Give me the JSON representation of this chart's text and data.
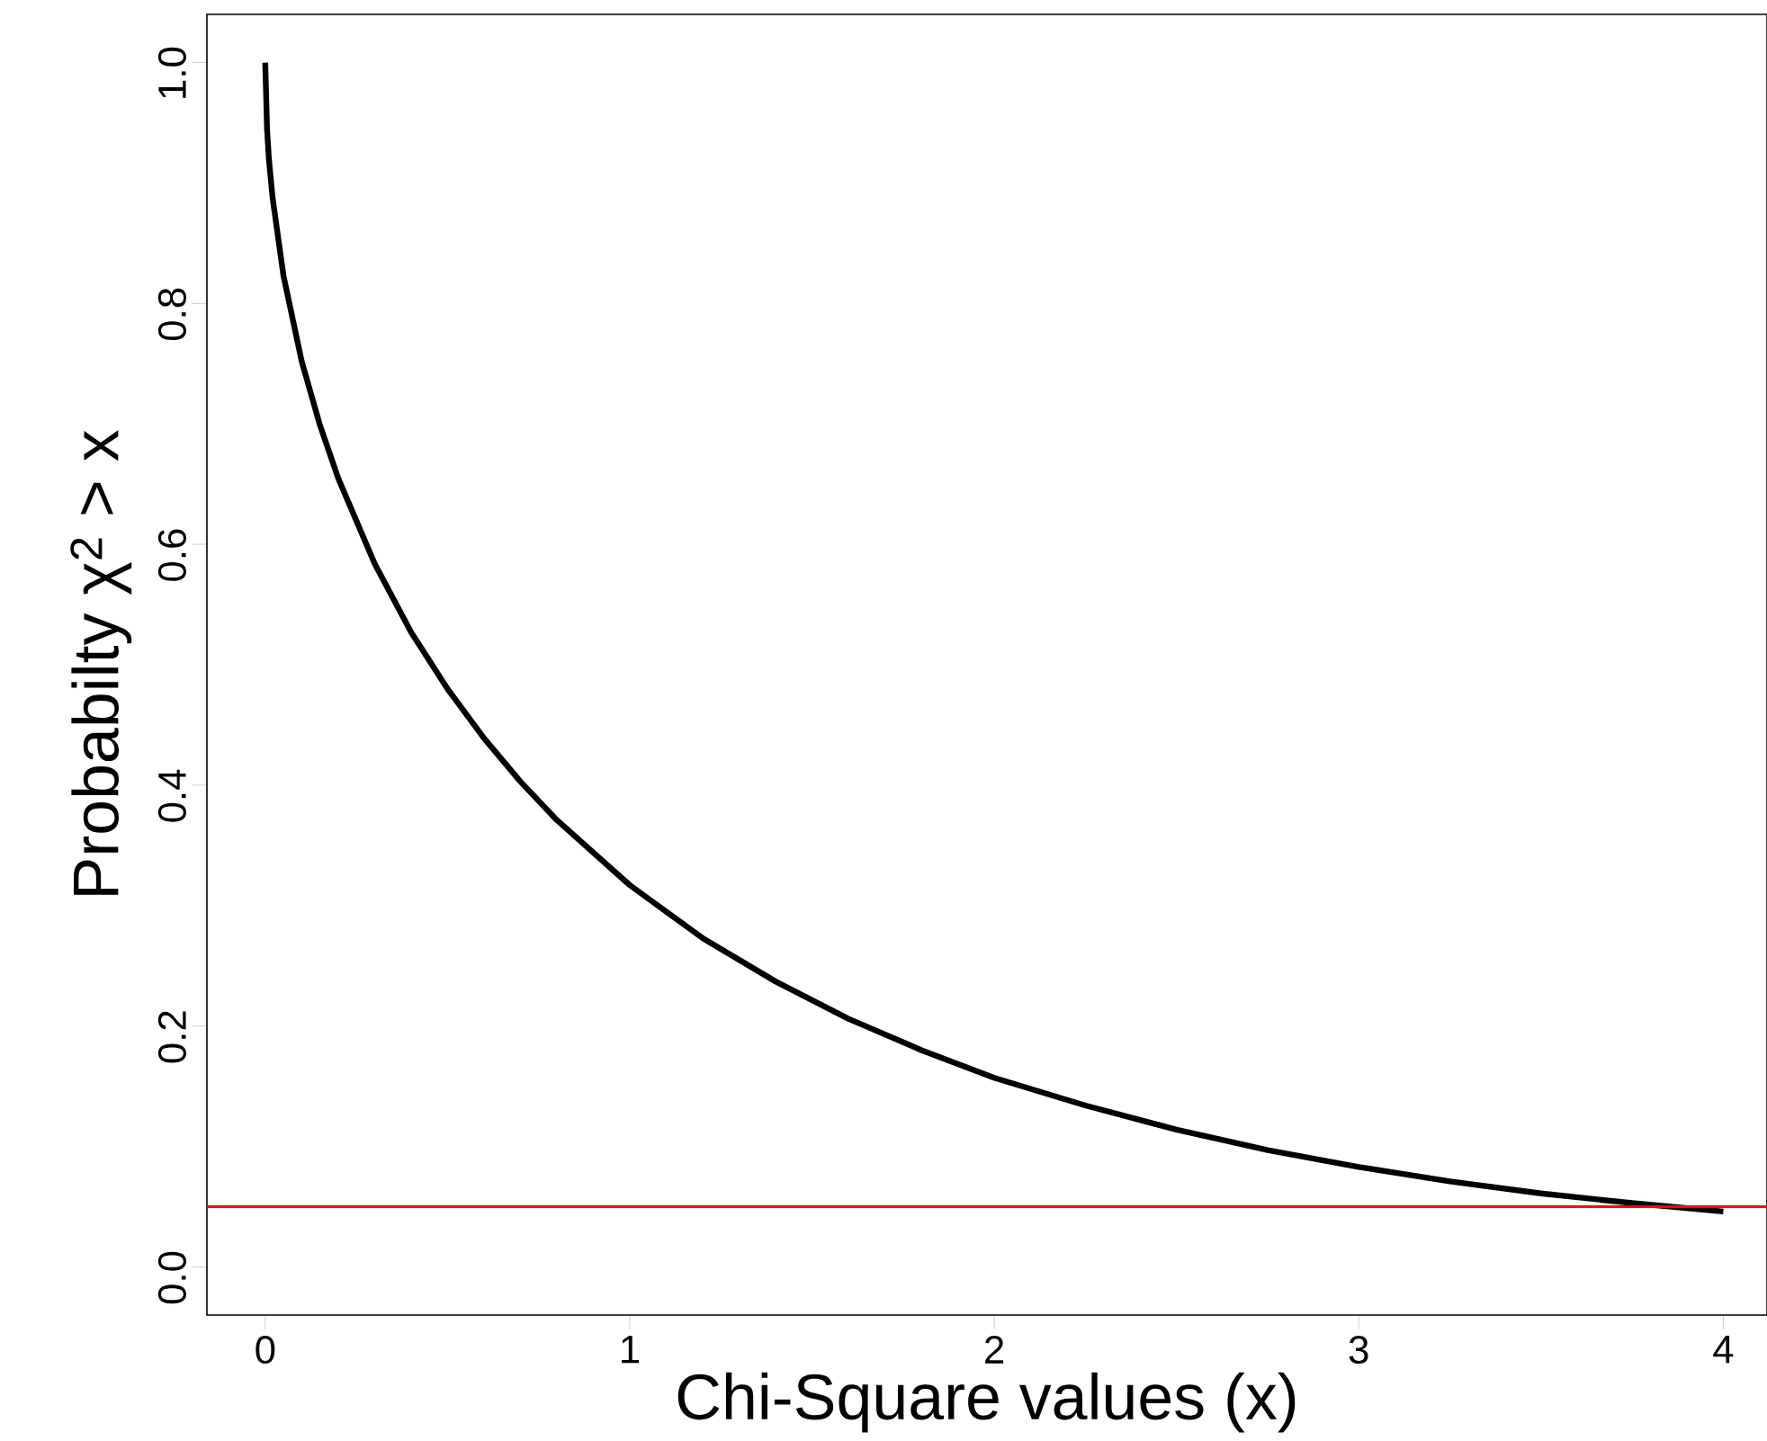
{
  "chart_data": {
    "type": "line",
    "xlabel": "Chi-Square values (x)",
    "ylabel": "Probabilty χ$^{2}$ > x",
    "series": [
      {
        "color": "#000000",
        "x": [
          0,
          0.005,
          0.01,
          0.02,
          0.05,
          0.1,
          0.15,
          0.2,
          0.3,
          0.4,
          0.5,
          0.6,
          0.7,
          0.8,
          1.0,
          1.2,
          1.4,
          1.6,
          1.8,
          2.0,
          2.25,
          2.5,
          2.75,
          3.0,
          3.25,
          3.5,
          3.75,
          4.0
        ],
        "values": [
          1.0,
          0.944,
          0.92,
          0.888,
          0.823,
          0.752,
          0.699,
          0.655,
          0.584,
          0.527,
          0.48,
          0.439,
          0.403,
          0.371,
          0.317,
          0.273,
          0.237,
          0.206,
          0.18,
          0.157,
          0.134,
          0.114,
          0.097,
          0.083,
          0.071,
          0.061,
          0.053,
          0.046
        ]
      }
    ],
    "xlim": [
      -0.16,
      4.12
    ],
    "ylim": [
      -0.04,
      1.04
    ],
    "xticks": [
      0,
      1,
      2,
      3,
      4
    ],
    "yticks": [
      {
        "value": 0,
        "label": "0.0"
      },
      {
        "value": 0.2,
        "label": "0.2"
      },
      {
        "value": 0.4,
        "label": "0.4"
      },
      {
        "value": 0.6,
        "label": "0.6"
      },
      {
        "value": 0.8,
        "label": "0.8"
      },
      {
        "value": 1.0,
        "label": "1.0"
      }
    ],
    "ref_lines": [
      {
        "axis": "y",
        "value": 0.05,
        "color": "#ff0000"
      }
    ],
    "grid": false,
    "marker": "none",
    "line_style": "solid"
  }
}
